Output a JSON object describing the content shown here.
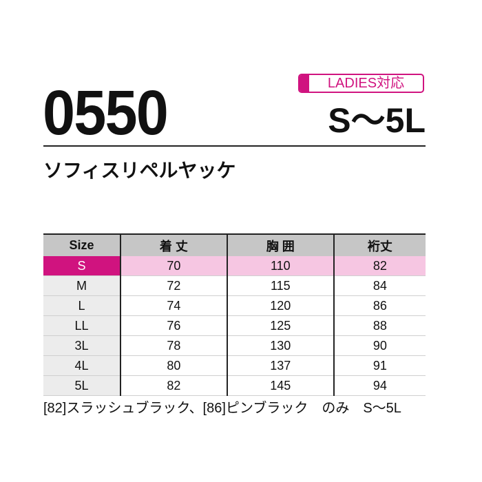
{
  "product_code": "0550",
  "badge": "LADIES対応",
  "size_range": "S〜5L",
  "product_name": "ソフィスリペルヤッケ",
  "colors": {
    "accent": "#d0137f",
    "highlight_row": "#f6c6e2",
    "header": "#c6c6c6"
  },
  "table": {
    "headers": [
      "Size",
      "着 丈",
      "胸 囲",
      "裄丈"
    ],
    "rows": [
      [
        "S",
        "70",
        "110",
        "82"
      ],
      [
        "M",
        "72",
        "115",
        "84"
      ],
      [
        "L",
        "74",
        "120",
        "86"
      ],
      [
        "LL",
        "76",
        "125",
        "88"
      ],
      [
        "3L",
        "78",
        "130",
        "90"
      ],
      [
        "4L",
        "80",
        "137",
        "91"
      ],
      [
        "5L",
        "82",
        "145",
        "94"
      ]
    ]
  },
  "note": "[82]スラッシュブラック、[86]ピンブラック　のみ　S〜5L"
}
